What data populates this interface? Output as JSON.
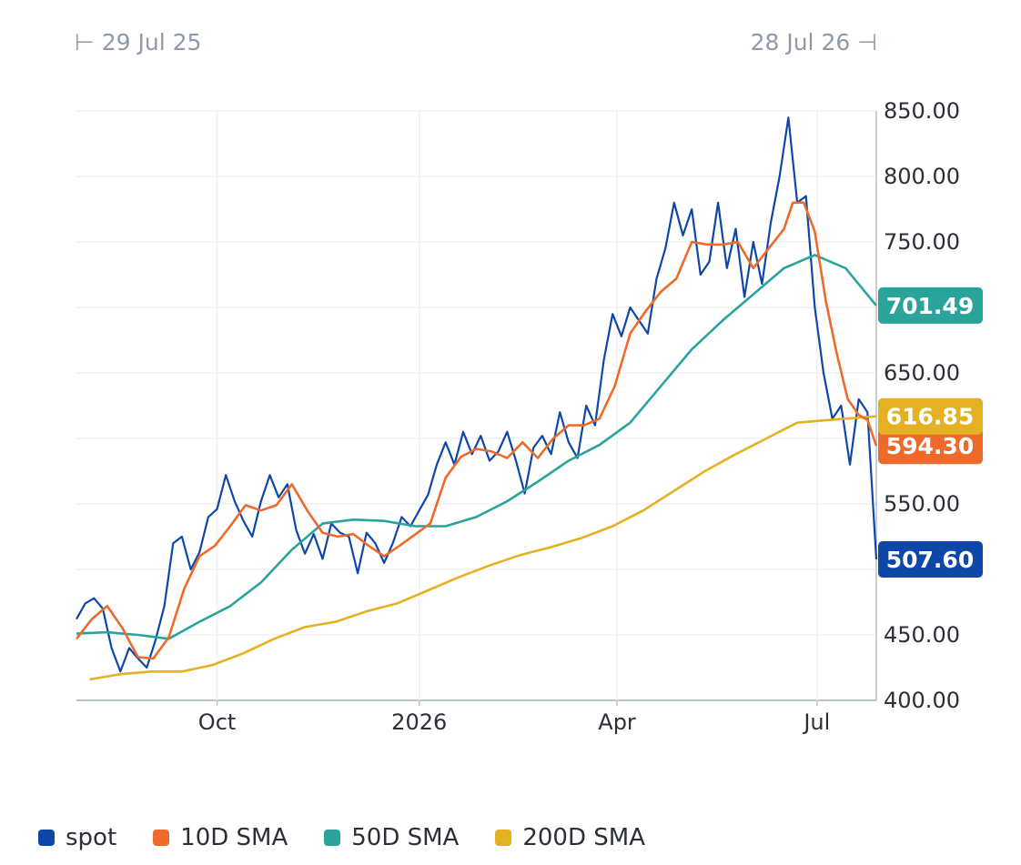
{
  "range": {
    "start": "29 Jul 25",
    "end": "28 Jul 26"
  },
  "chart_data": {
    "type": "line",
    "x_labels": [
      "Oct",
      "2026",
      "Apr",
      "Jul"
    ],
    "y_ticks": [
      "400.00",
      "450.00",
      "550.00",
      "650.00",
      "750.00",
      "800.00",
      "850.00"
    ],
    "ylim": [
      400,
      850
    ],
    "xlim": [
      "2025-07-29",
      "2026-07-28"
    ],
    "grid": true,
    "legend_position": "bottom",
    "series": [
      {
        "name": "spot",
        "color": "#0f47a8",
        "last_label": "507.60",
        "values": [
          [
            "2025-07-29",
            462
          ],
          [
            "2025-08-02",
            474
          ],
          [
            "2025-08-06",
            478
          ],
          [
            "2025-08-10",
            470
          ],
          [
            "2025-08-14",
            440
          ],
          [
            "2025-08-18",
            422
          ],
          [
            "2025-08-22",
            440
          ],
          [
            "2025-08-26",
            432
          ],
          [
            "2025-08-30",
            425
          ],
          [
            "2025-09-03",
            446
          ],
          [
            "2025-09-07",
            472
          ],
          [
            "2025-09-11",
            520
          ],
          [
            "2025-09-15",
            525
          ],
          [
            "2025-09-19",
            500
          ],
          [
            "2025-09-23",
            513
          ],
          [
            "2025-09-27",
            540
          ],
          [
            "2025-10-01",
            546
          ],
          [
            "2025-10-05",
            572
          ],
          [
            "2025-10-09",
            552
          ],
          [
            "2025-10-13",
            537
          ],
          [
            "2025-10-17",
            525
          ],
          [
            "2025-10-21",
            552
          ],
          [
            "2025-10-25",
            572
          ],
          [
            "2025-10-29",
            555
          ],
          [
            "2025-11-02",
            565
          ],
          [
            "2025-11-06",
            530
          ],
          [
            "2025-11-10",
            512
          ],
          [
            "2025-11-14",
            527
          ],
          [
            "2025-11-18",
            508
          ],
          [
            "2025-11-22",
            535
          ],
          [
            "2025-11-26",
            528
          ],
          [
            "2025-11-30",
            525
          ],
          [
            "2025-12-04",
            497
          ],
          [
            "2025-12-08",
            528
          ],
          [
            "2025-12-12",
            520
          ],
          [
            "2025-12-16",
            505
          ],
          [
            "2025-12-20",
            520
          ],
          [
            "2025-12-24",
            540
          ],
          [
            "2025-12-28",
            533
          ],
          [
            "2026-01-01",
            545
          ],
          [
            "2026-01-05",
            557
          ],
          [
            "2026-01-09",
            580
          ],
          [
            "2026-01-13",
            597
          ],
          [
            "2026-01-17",
            580
          ],
          [
            "2026-01-21",
            605
          ],
          [
            "2026-01-25",
            588
          ],
          [
            "2026-01-29",
            602
          ],
          [
            "2026-02-02",
            583
          ],
          [
            "2026-02-06",
            590
          ],
          [
            "2026-02-10",
            605
          ],
          [
            "2026-02-14",
            583
          ],
          [
            "2026-02-18",
            558
          ],
          [
            "2026-02-22",
            593
          ],
          [
            "2026-02-26",
            602
          ],
          [
            "2026-03-02",
            588
          ],
          [
            "2026-03-06",
            620
          ],
          [
            "2026-03-10",
            597
          ],
          [
            "2026-03-14",
            585
          ],
          [
            "2026-03-18",
            625
          ],
          [
            "2026-03-22",
            610
          ],
          [
            "2026-03-26",
            660
          ],
          [
            "2026-03-30",
            695
          ],
          [
            "2026-04-03",
            678
          ],
          [
            "2026-04-07",
            700
          ],
          [
            "2026-04-11",
            690
          ],
          [
            "2026-04-15",
            680
          ],
          [
            "2026-04-19",
            722
          ],
          [
            "2026-04-23",
            745
          ],
          [
            "2026-04-27",
            780
          ],
          [
            "2026-05-01",
            755
          ],
          [
            "2026-05-05",
            775
          ],
          [
            "2026-05-09",
            725
          ],
          [
            "2026-05-13",
            735
          ],
          [
            "2026-05-17",
            780
          ],
          [
            "2026-05-21",
            730
          ],
          [
            "2026-05-25",
            760
          ],
          [
            "2026-05-29",
            708
          ],
          [
            "2026-06-02",
            750
          ],
          [
            "2026-06-06",
            718
          ],
          [
            "2026-06-10",
            765
          ],
          [
            "2026-06-14",
            800
          ],
          [
            "2026-06-18",
            845
          ],
          [
            "2026-06-22",
            780
          ],
          [
            "2026-06-26",
            785
          ],
          [
            "2026-06-30",
            700
          ],
          [
            "2026-07-04",
            650
          ],
          [
            "2026-07-08",
            615
          ],
          [
            "2026-07-12",
            625
          ],
          [
            "2026-07-16",
            580
          ],
          [
            "2026-07-20",
            630
          ],
          [
            "2026-07-24",
            620
          ],
          [
            "2026-07-28",
            507.6
          ]
        ]
      },
      {
        "name": "10D SMA",
        "color": "#ef6a2a",
        "last_label": "594.30",
        "values": [
          [
            "2025-07-29",
            447
          ],
          [
            "2025-08-05",
            462
          ],
          [
            "2025-08-12",
            472
          ],
          [
            "2025-08-19",
            455
          ],
          [
            "2025-08-26",
            433
          ],
          [
            "2025-09-02",
            432
          ],
          [
            "2025-09-09",
            448
          ],
          [
            "2025-09-16",
            485
          ],
          [
            "2025-09-23",
            510
          ],
          [
            "2025-09-30",
            518
          ],
          [
            "2025-10-07",
            533
          ],
          [
            "2025-10-14",
            549
          ],
          [
            "2025-10-21",
            545
          ],
          [
            "2025-10-28",
            549
          ],
          [
            "2025-11-04",
            565
          ],
          [
            "2025-11-11",
            545
          ],
          [
            "2025-11-18",
            528
          ],
          [
            "2025-11-25",
            525
          ],
          [
            "2025-12-02",
            527
          ],
          [
            "2025-12-09",
            518
          ],
          [
            "2025-12-16",
            510
          ],
          [
            "2025-12-23",
            518
          ],
          [
            "2026-01-06",
            535
          ],
          [
            "2026-01-13",
            570
          ],
          [
            "2026-01-20",
            586
          ],
          [
            "2026-01-27",
            592
          ],
          [
            "2026-02-03",
            590
          ],
          [
            "2026-02-10",
            585
          ],
          [
            "2026-02-17",
            597
          ],
          [
            "2026-02-24",
            585
          ],
          [
            "2026-03-03",
            600
          ],
          [
            "2026-03-10",
            610
          ],
          [
            "2026-03-17",
            610
          ],
          [
            "2026-03-24",
            615
          ],
          [
            "2026-03-31",
            640
          ],
          [
            "2026-04-07",
            680
          ],
          [
            "2026-04-14",
            697
          ],
          [
            "2026-04-21",
            712
          ],
          [
            "2026-04-28",
            722
          ],
          [
            "2026-05-05",
            750
          ],
          [
            "2026-05-12",
            748
          ],
          [
            "2026-05-19",
            748
          ],
          [
            "2026-05-26",
            750
          ],
          [
            "2026-06-02",
            730
          ],
          [
            "2026-06-09",
            745
          ],
          [
            "2026-06-16",
            760
          ],
          [
            "2026-06-20",
            780
          ],
          [
            "2026-06-25",
            780
          ],
          [
            "2026-06-30",
            758
          ],
          [
            "2026-07-05",
            705
          ],
          [
            "2026-07-10",
            665
          ],
          [
            "2026-07-15",
            630
          ],
          [
            "2026-07-20",
            618
          ],
          [
            "2026-07-24",
            614
          ],
          [
            "2026-07-28",
            594.3
          ]
        ]
      },
      {
        "name": "50D SMA",
        "color": "#2aa39a",
        "last_label": "701.49",
        "values": [
          [
            "2025-07-29",
            451
          ],
          [
            "2025-08-12",
            452
          ],
          [
            "2025-08-26",
            450
          ],
          [
            "2025-09-09",
            447
          ],
          [
            "2025-09-23",
            460
          ],
          [
            "2025-10-07",
            472
          ],
          [
            "2025-10-21",
            490
          ],
          [
            "2025-11-04",
            515
          ],
          [
            "2025-11-18",
            535
          ],
          [
            "2025-12-02",
            538
          ],
          [
            "2025-12-16",
            537
          ],
          [
            "2025-12-30",
            533
          ],
          [
            "2026-01-13",
            533
          ],
          [
            "2026-01-27",
            540
          ],
          [
            "2026-02-10",
            552
          ],
          [
            "2026-02-24",
            567
          ],
          [
            "2026-03-10",
            583
          ],
          [
            "2026-03-24",
            595
          ],
          [
            "2026-04-07",
            612
          ],
          [
            "2026-04-21",
            640
          ],
          [
            "2026-05-05",
            668
          ],
          [
            "2026-05-19",
            690
          ],
          [
            "2026-06-02",
            710
          ],
          [
            "2026-06-16",
            730
          ],
          [
            "2026-06-30",
            740
          ],
          [
            "2026-07-14",
            730
          ],
          [
            "2026-07-28",
            701.49
          ]
        ]
      },
      {
        "name": "200D SMA",
        "color": "#e3b122",
        "last_label": "616.85",
        "values": [
          [
            "2025-08-04",
            416
          ],
          [
            "2025-08-18",
            420
          ],
          [
            "2025-09-01",
            422
          ],
          [
            "2025-09-15",
            422
          ],
          [
            "2025-09-29",
            427
          ],
          [
            "2025-10-13",
            436
          ],
          [
            "2025-10-27",
            447
          ],
          [
            "2025-11-10",
            456
          ],
          [
            "2025-11-24",
            460
          ],
          [
            "2025-12-08",
            468
          ],
          [
            "2025-12-22",
            474
          ],
          [
            "2026-01-05",
            484
          ],
          [
            "2026-01-19",
            494
          ],
          [
            "2026-02-02",
            503
          ],
          [
            "2026-02-16",
            511
          ],
          [
            "2026-03-02",
            517
          ],
          [
            "2026-03-16",
            524
          ],
          [
            "2026-03-30",
            533
          ],
          [
            "2026-04-13",
            545
          ],
          [
            "2026-04-27",
            560
          ],
          [
            "2026-05-11",
            575
          ],
          [
            "2026-05-25",
            588
          ],
          [
            "2026-06-08",
            600
          ],
          [
            "2026-06-22",
            612
          ],
          [
            "2026-07-06",
            614
          ],
          [
            "2026-07-28",
            616.85
          ]
        ]
      }
    ]
  }
}
